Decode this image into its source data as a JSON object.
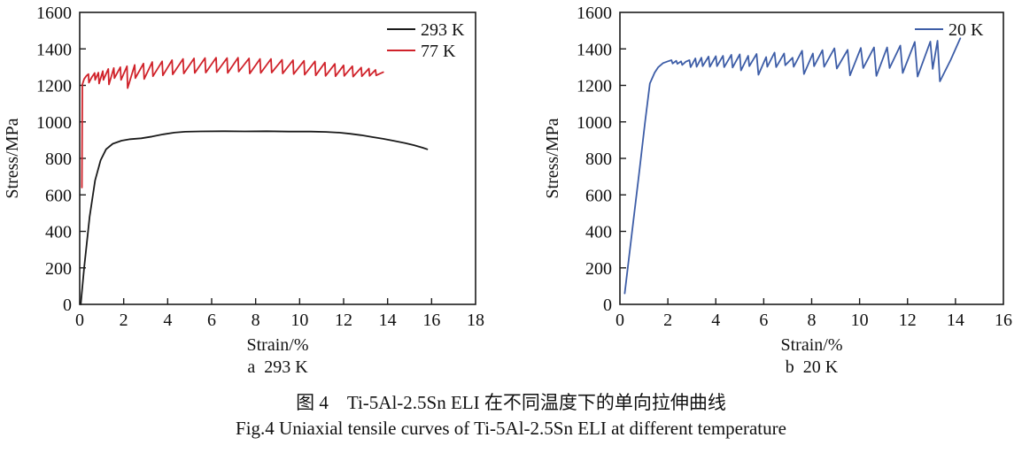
{
  "figure": {
    "caption_zh": "图 4　Ti-5Al-2.5Sn ELI 在不同温度下的单向拉伸曲线",
    "caption_en": "Fig.4 Uniaxial tensile curves of Ti-5Al-2.5Sn ELI at different temperature"
  },
  "colors": {
    "axis": "#1c1c1c",
    "black_series": "#1a1a1a",
    "red_series": "#d0222a",
    "blue_series": "#3d5da7"
  },
  "chart_data": [
    {
      "type": "line",
      "title": "a  293 K",
      "xlabel": "Strain/%",
      "ylabel": "Stress/MPa",
      "xlim": [
        0,
        18
      ],
      "xtick_step": 2,
      "ylim": [
        0,
        1600
      ],
      "ytick_step": 200,
      "grid": false,
      "legend_position": "top-right",
      "series": [
        {
          "name": "293 K",
          "color": "#1a1a1a",
          "points": [
            [
              0.05,
              0
            ],
            [
              0.2,
              200
            ],
            [
              0.45,
              480
            ],
            [
              0.7,
              680
            ],
            [
              0.95,
              790
            ],
            [
              1.2,
              850
            ],
            [
              1.5,
              880
            ],
            [
              1.9,
              897
            ],
            [
              2.3,
              905
            ],
            [
              2.8,
              910
            ],
            [
              3.3,
              920
            ],
            [
              3.8,
              932
            ],
            [
              4.3,
              941
            ],
            [
              4.8,
              946
            ],
            [
              5.5,
              948
            ],
            [
              6.5,
              949
            ],
            [
              7.5,
              948
            ],
            [
              8.5,
              949
            ],
            [
              9.5,
              947
            ],
            [
              10.5,
              947
            ],
            [
              11.2,
              945
            ],
            [
              11.8,
              941
            ],
            [
              12.3,
              935
            ],
            [
              12.8,
              927
            ],
            [
              13.3,
              917
            ],
            [
              13.8,
              907
            ],
            [
              14.3,
              896
            ],
            [
              14.8,
              884
            ],
            [
              15.2,
              872
            ],
            [
              15.6,
              858
            ],
            [
              15.8,
              850
            ]
          ]
        },
        {
          "name": "77 K",
          "color": "#d0222a",
          "points": [
            [
              0.1,
              640
            ],
            [
              0.12,
              1205
            ],
            [
              0.2,
              1235
            ],
            [
              0.3,
              1252
            ],
            [
              0.4,
              1262
            ],
            [
              0.42,
              1215
            ],
            [
              0.55,
              1245
            ],
            [
              0.68,
              1268
            ],
            [
              0.7,
              1230
            ],
            [
              0.85,
              1270
            ],
            [
              0.88,
              1210
            ],
            [
              1.05,
              1278
            ],
            [
              1.08,
              1230
            ],
            [
              1.3,
              1290
            ],
            [
              1.33,
              1205
            ],
            [
              1.55,
              1295
            ],
            [
              1.58,
              1240
            ],
            [
              1.85,
              1300
            ],
            [
              1.88,
              1230
            ],
            [
              2.15,
              1305
            ],
            [
              2.18,
              1185
            ],
            [
              2.5,
              1312
            ],
            [
              2.53,
              1240
            ],
            [
              2.9,
              1320
            ],
            [
              2.93,
              1235
            ],
            [
              3.3,
              1328
            ],
            [
              3.33,
              1250
            ],
            [
              3.75,
              1332
            ],
            [
              3.78,
              1255
            ],
            [
              4.2,
              1338
            ],
            [
              4.23,
              1260
            ],
            [
              4.7,
              1345
            ],
            [
              4.73,
              1265
            ],
            [
              5.2,
              1348
            ],
            [
              5.23,
              1268
            ],
            [
              5.7,
              1350
            ],
            [
              5.73,
              1270
            ],
            [
              6.2,
              1352
            ],
            [
              6.23,
              1272
            ],
            [
              6.7,
              1350
            ],
            [
              6.73,
              1268
            ],
            [
              7.2,
              1352
            ],
            [
              7.23,
              1275
            ],
            [
              7.7,
              1348
            ],
            [
              7.73,
              1265
            ],
            [
              8.2,
              1345
            ],
            [
              8.23,
              1268
            ],
            [
              8.7,
              1345
            ],
            [
              8.73,
              1270
            ],
            [
              9.2,
              1340
            ],
            [
              9.23,
              1265
            ],
            [
              9.7,
              1338
            ],
            [
              9.73,
              1262
            ],
            [
              10.2,
              1335
            ],
            [
              10.23,
              1258
            ],
            [
              10.7,
              1332
            ],
            [
              10.73,
              1255
            ],
            [
              11.15,
              1325
            ],
            [
              11.18,
              1252
            ],
            [
              11.6,
              1318
            ],
            [
              11.63,
              1250
            ],
            [
              12.0,
              1310
            ],
            [
              12.03,
              1252
            ],
            [
              12.4,
              1305
            ],
            [
              12.43,
              1248
            ],
            [
              12.8,
              1298
            ],
            [
              12.83,
              1250
            ],
            [
              13.15,
              1292
            ],
            [
              13.18,
              1252
            ],
            [
              13.45,
              1285
            ],
            [
              13.48,
              1255
            ],
            [
              13.8,
              1272
            ]
          ]
        }
      ]
    },
    {
      "type": "line",
      "title": "b  20 K",
      "xlabel": "Strain/%",
      "ylabel": "Stress/MPa",
      "xlim": [
        0,
        16
      ],
      "xtick_step": 2,
      "ylim": [
        0,
        1600
      ],
      "ytick_step": 200,
      "grid": false,
      "legend_position": "top-right",
      "series": [
        {
          "name": "20 K",
          "color": "#3d5da7",
          "points": [
            [
              0.2,
              60
            ],
            [
              0.5,
              390
            ],
            [
              0.8,
              720
            ],
            [
              1.05,
              1000
            ],
            [
              1.25,
              1210
            ],
            [
              1.45,
              1270
            ],
            [
              1.6,
              1300
            ],
            [
              1.8,
              1322
            ],
            [
              2.0,
              1332
            ],
            [
              2.15,
              1338
            ],
            [
              2.2,
              1320
            ],
            [
              2.35,
              1335
            ],
            [
              2.4,
              1318
            ],
            [
              2.55,
              1332
            ],
            [
              2.6,
              1312
            ],
            [
              2.75,
              1330
            ],
            [
              2.9,
              1338
            ],
            [
              2.95,
              1300
            ],
            [
              3.15,
              1348
            ],
            [
              3.2,
              1302
            ],
            [
              3.4,
              1352
            ],
            [
              3.45,
              1305
            ],
            [
              3.7,
              1358
            ],
            [
              3.75,
              1302
            ],
            [
              4.0,
              1360
            ],
            [
              4.05,
              1305
            ],
            [
              4.3,
              1362
            ],
            [
              4.35,
              1300
            ],
            [
              4.65,
              1368
            ],
            [
              4.7,
              1298
            ],
            [
              5.0,
              1370
            ],
            [
              5.05,
              1282
            ],
            [
              5.35,
              1362
            ],
            [
              5.4,
              1305
            ],
            [
              5.7,
              1372
            ],
            [
              5.78,
              1258
            ],
            [
              6.1,
              1355
            ],
            [
              6.15,
              1302
            ],
            [
              6.45,
              1380
            ],
            [
              6.52,
              1300
            ],
            [
              6.85,
              1375
            ],
            [
              6.9,
              1310
            ],
            [
              7.2,
              1352
            ],
            [
              7.25,
              1302
            ],
            [
              7.6,
              1390
            ],
            [
              7.68,
              1262
            ],
            [
              8.05,
              1375
            ],
            [
              8.1,
              1305
            ],
            [
              8.45,
              1393
            ],
            [
              8.52,
              1302
            ],
            [
              8.95,
              1403
            ],
            [
              9.05,
              1292
            ],
            [
              9.5,
              1395
            ],
            [
              9.6,
              1255
            ],
            [
              10.05,
              1405
            ],
            [
              10.15,
              1295
            ],
            [
              10.6,
              1408
            ],
            [
              10.7,
              1252
            ],
            [
              11.15,
              1408
            ],
            [
              11.25,
              1295
            ],
            [
              11.7,
              1418
            ],
            [
              11.8,
              1268
            ],
            [
              12.3,
              1438
            ],
            [
              12.42,
              1248
            ],
            [
              12.95,
              1440
            ],
            [
              13.05,
              1290
            ],
            [
              13.25,
              1445
            ],
            [
              13.35,
              1222
            ],
            [
              13.8,
              1340
            ],
            [
              14.2,
              1458
            ]
          ]
        }
      ]
    }
  ]
}
